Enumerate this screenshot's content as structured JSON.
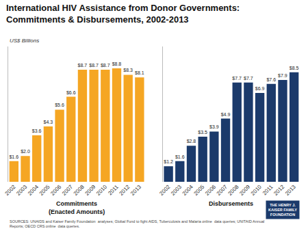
{
  "chart_data": [
    {
      "type": "bar",
      "title": "International HIV Assistance from Donor Governments:\nCommitments & Disbursements, 2002-2013",
      "ylabel": "US$ Billions",
      "xlabel": "Commitments\n(Enacted Amounts)",
      "categories": [
        "2002",
        "2003",
        "2004",
        "2005",
        "2006",
        "2007",
        "2008",
        "2009",
        "2010",
        "2011",
        "2012",
        "2013"
      ],
      "values": [
        1.6,
        2.0,
        3.6,
        4.3,
        5.6,
        6.6,
        8.7,
        8.7,
        8.7,
        8.8,
        8.3,
        8.1
      ],
      "value_labels": [
        "$1.6",
        "$2.0",
        "$3.6",
        "$4.3",
        "$5.6",
        "$6.6",
        "$8.7",
        "$8.7",
        "$8.7",
        "$8.8",
        "$8.3",
        "$8.1"
      ],
      "data_labels": true,
      "color": "#F5A623",
      "ylim": [
        0,
        10.5
      ],
      "tick_labels": "x",
      "grid": false,
      "annotations": [
        "SOURCES: UNAIDS and Kaiser Family Foundation  analyses; Global Fund to fight AIDS, Tuberculosis and Malaria online  data queries; UNITAID Annual\nReports; OECD CRS online  data queries.",
        "THE HENRY J.\nKAISER FAMILY\nFOUNDATION"
      ]
    },
    {
      "type": "bar",
      "xlabel": "Disbursements",
      "categories": [
        "2002",
        "2003",
        "2004",
        "2005",
        "2006",
        "2007",
        "2008",
        "2009",
        "2010",
        "2011",
        "2012",
        "2013"
      ],
      "values": [
        1.2,
        1.6,
        2.8,
        3.5,
        3.9,
        4.9,
        7.7,
        7.7,
        6.9,
        7.6,
        7.9,
        8.5
      ],
      "value_labels": [
        "$1.2",
        "$1.6",
        "$2.8",
        "$3.5",
        "$3.9",
        "$4.9",
        "$7.7",
        "$7.7",
        "$6.9",
        "$7.6",
        "$7.9",
        "$8.5"
      ],
      "data_labels": true,
      "color": "#1B3A6B",
      "ylim": [
        0,
        10.5
      ],
      "tick_labels": "x",
      "grid": false
    }
  ]
}
